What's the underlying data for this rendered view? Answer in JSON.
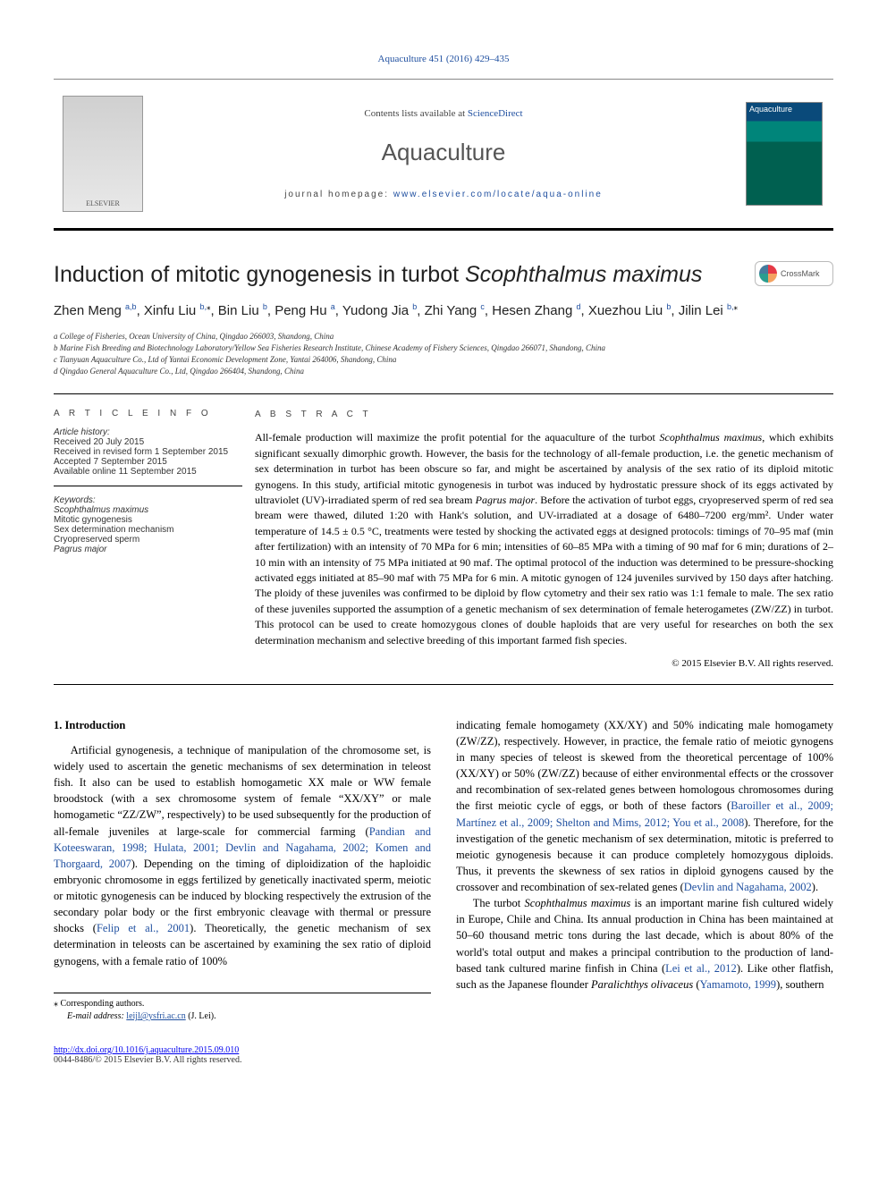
{
  "citation": "Aquaculture 451 (2016) 429–435",
  "header": {
    "contents_prefix": "Contents lists available at ",
    "contents_link": "ScienceDirect",
    "journal": "Aquaculture",
    "homepage_prefix": "journal homepage: ",
    "homepage_link": "www.elsevier.com/locate/aqua-online",
    "elsevier_label": "ELSEVIER",
    "cover_label": "Aquaculture",
    "crossmark_label": "CrossMark"
  },
  "title_plain": "Induction of mitotic gynogenesis in turbot ",
  "title_ital": "Scophthalmus maximus",
  "authors_html": "Zhen Meng <sup>a,b</sup>, Xinfu Liu <sup>b,</sup><sup class='sup-black'>⁎</sup>, Bin Liu <sup>b</sup>, Peng Hu <sup>a</sup>, Yudong Jia <sup>b</sup>, Zhi Yang <sup>c</sup>, Hesen Zhang <sup>d</sup>, Xuezhou Liu <sup>b</sup>, Jilin Lei <sup>b,</sup><sup class='sup-black'>⁎</sup>",
  "affiliations": [
    "a  College of Fisheries, Ocean University of China, Qingdao 266003, Shandong, China",
    "b  Marine Fish Breeding and Biotechnology Laboratory/Yellow Sea Fisheries Research Institute, Chinese Academy of Fishery Sciences, Qingdao 266071, Shandong, China",
    "c  Tianyuan Aquaculture Co., Ltd of Yantai Economic Development Zone, Yantai 264006, Shandong, China",
    "d  Qingdao General Aquaculture Co., Ltd, Qingdao 266404, Shandong, China"
  ],
  "article_info": {
    "heading": "A R T I C L E   I N F O",
    "history_label": "Article history:",
    "history": [
      "Received 20 July 2015",
      "Received in revised form 1 September 2015",
      "Accepted 7 September 2015",
      "Available online 11 September 2015"
    ],
    "keywords_label": "Keywords:",
    "keywords": [
      "Scophthalmus maximus",
      "Mitotic gynogenesis",
      "Sex determination mechanism",
      "Cryopreserved sperm",
      "Pagrus major"
    ]
  },
  "abstract": {
    "heading": "A B S T R A C T",
    "text_html": "All-female production will maximize the profit potential for the aquaculture of the turbot <span class='ital'>Scophthalmus maximus</span>, which exhibits significant sexually dimorphic growth. However, the basis for the technology of all-female production, i.e. the genetic mechanism of sex determination in turbot has been obscure so far, and might be ascertained by analysis of the sex ratio of its diploid mitotic gynogens. In this study, artificial mitotic gynogenesis in turbot was induced by hydrostatic pressure shock of its eggs activated by ultraviolet (UV)-irradiated sperm of red sea bream <span class='ital'>Pagrus major</span>. Before the activation of turbot eggs, cryopreserved sperm of red sea bream were thawed, diluted 1:20 with Hank's solution, and UV-irradiated at a dosage of 6480–7200 erg/mm². Under water temperature of 14.5 ± 0.5 °C, treatments were tested by shocking the activated eggs at designed protocols: timings of 70–95 maf (min after fertilization) with an intensity of 70 MPa for 6 min; intensities of 60–85 MPa with a timing of 90 maf for 6 min; durations of 2–10 min with an intensity of 75 MPa initiated at 90 maf. The optimal protocol of the induction was determined to be pressure-shocking activated eggs initiated at 85–90 maf with 75 MPa for 6 min. A mitotic gynogen of 124 juveniles survived by 150 days after hatching. The ploidy of these juveniles was confirmed to be diploid by flow cytometry and their sex ratio was 1:1 female to male. The sex ratio of these juveniles supported the assumption of a genetic mechanism of sex determination of female heterogametes (ZW/ZZ) in turbot. This protocol can be used to create homozygous clones of double haploids that are very useful for researches on both the sex determination mechanism and selective breeding of this important farmed fish species.",
    "copyright": "© 2015 Elsevier B.V. All rights reserved."
  },
  "body": {
    "heading_1": "1. Introduction",
    "col1_p1_html": "Artificial gynogenesis, a technique of manipulation of the chromosome set, is widely used to ascertain the genetic mechanisms of sex determination in teleost fish. It also can be used to establish homogametic XX male or WW female broodstock (with a sex chromosome system of female “XX/XY” or male homogametic “ZZ/ZW”, respectively) to be used subsequently for the production of all-female juveniles at large-scale for commercial farming (<span class='lnk'>Pandian and Koteeswaran, 1998; Hulata, 2001; Devlin and Nagahama, 2002; Komen and Thorgaard, 2007</span>). Depending on the timing of diploidization of the haploidic embryonic chromosome in eggs fertilized by genetically inactivated sperm, meiotic or mitotic gynogenesis can be induced by blocking respectively the extrusion of the secondary polar body or the first embryonic cleavage with thermal or pressure shocks (<span class='lnk'>Felip et al., 2001</span>). Theoretically, the genetic mechanism of sex determination in teleosts can be ascertained by examining the sex ratio of diploid gynogens, with a female ratio of 100%",
    "col2_p1_html": "indicating female homogamety (XX/XY) and 50% indicating male homogamety (ZW/ZZ), respectively. However, in practice, the female ratio of meiotic gynogens in many species of teleost is skewed from the theoretical percentage of 100% (XX/XY) or 50% (ZW/ZZ) because of either environmental effects or the crossover and recombination of sex-related genes between homologous chromosomes during the first meiotic cycle of eggs, or both of these factors (<span class='lnk'>Baroiller et al., 2009; Martínez et al., 2009; Shelton and Mims, 2012; You et al., 2008</span>). Therefore, for the investigation of the genetic mechanism of sex determination, mitotic is preferred to meiotic gynogenesis because it can produce completely homozygous diploids. Thus, it prevents the skewness of sex ratios in diploid gynogens caused by the crossover and recombination of sex-related genes (<span class='lnk'>Devlin and Nagahama, 2002</span>).",
    "col2_p2_html": "The turbot <span class='ital'>Scophthalmus maximus</span> is an important marine fish cultured widely in Europe, Chile and China. Its annual production in China has been maintained at 50–60 thousand metric tons during the last decade, which is about 80% of the world's total output and makes a principal contribution to the production of land-based tank cultured marine finfish in China (<span class='lnk'>Lei et al., 2012</span>). Like other flatfish, such as the Japanese flounder <span class='ital'>Paralichthys olivaceus</span> (<span class='lnk'>Yamamoto, 1999</span>), southern"
  },
  "corresponding": {
    "star": "⁎ Corresponding authors.",
    "email_label": "E-mail address:",
    "email": "leijl@ysfri.ac.cn",
    "email_who": "(J. Lei)."
  },
  "doi": {
    "url": "http://dx.doi.org/10.1016/j.aquaculture.2015.09.010",
    "issn_line": "0044-8486/© 2015 Elsevier B.V. All rights reserved."
  }
}
